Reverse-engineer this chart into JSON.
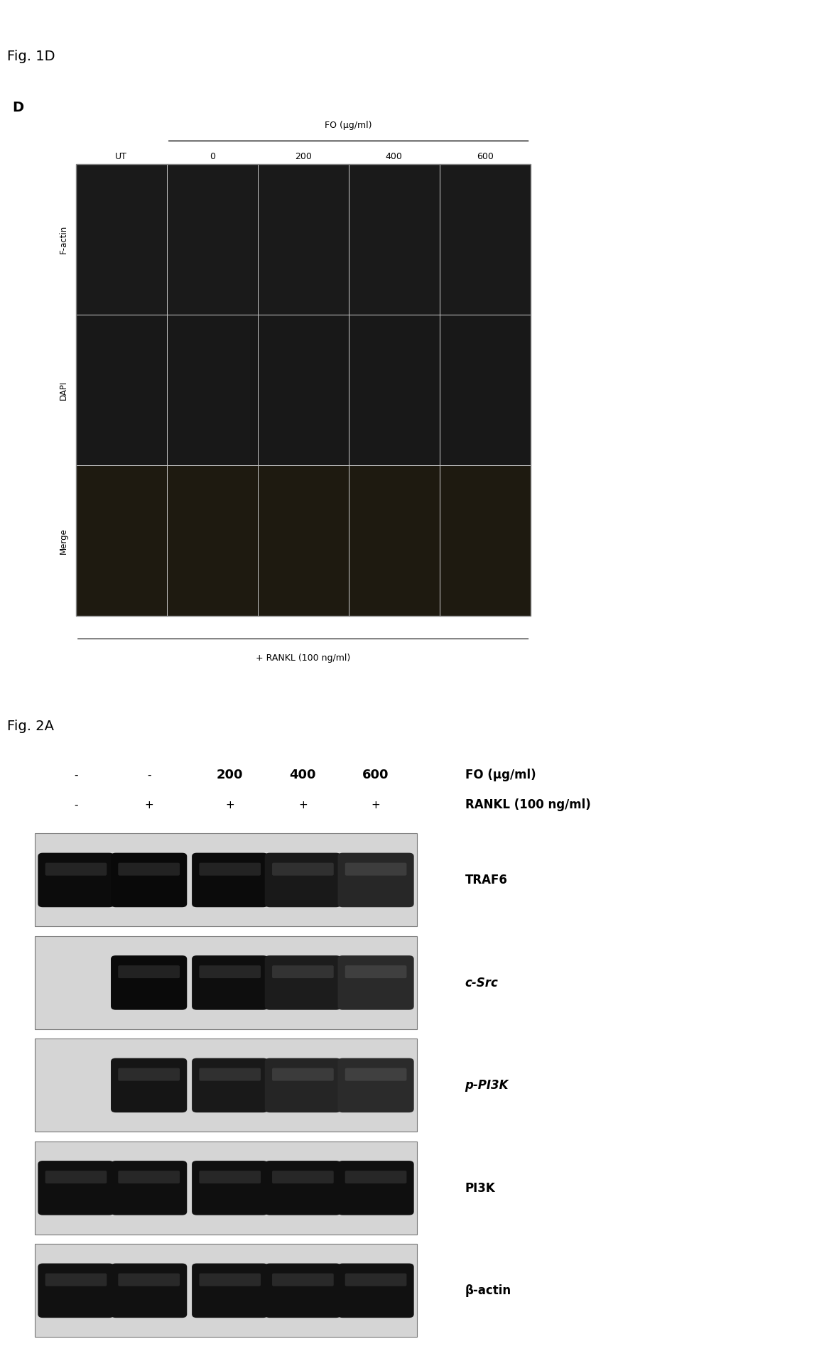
{
  "fig1d_label": "Fig. 1D",
  "fig2a_label": "Fig. 2A",
  "panel_d_label": "D",
  "fo_label": "FO (μg/ml)",
  "fo_concentrations": [
    "UT",
    "0",
    "200",
    "400",
    "600"
  ],
  "rankl_label": "+ RANKL (100 ng/ml)",
  "row_labels": [
    "F-actin",
    "DAPI",
    "Merge"
  ],
  "panel2a_fo_vals": [
    "-",
    "-",
    "200",
    "400",
    "600"
  ],
  "panel2a_rankl_vals": [
    "-",
    "+",
    "+",
    "+",
    "+"
  ],
  "fo_right_label": "FO (μg/ml)",
  "rankl_right_label": "RANKL (100 ng/ml)",
  "wb_labels": [
    "TRAF6",
    "c-Src",
    "p-PI3K",
    "PI3K",
    "β-actin"
  ],
  "band_intensity": {
    "TRAF6": [
      0.82,
      0.9,
      0.85,
      0.52,
      0.18
    ],
    "c-Src": [
      0.02,
      0.88,
      0.78,
      0.45,
      0.1
    ],
    "p-PI3K": [
      0.02,
      0.62,
      0.52,
      0.22,
      0.08
    ],
    "PI3K": [
      0.75,
      0.75,
      0.75,
      0.75,
      0.75
    ],
    "β-actin": [
      0.72,
      0.72,
      0.72,
      0.72,
      0.72
    ]
  },
  "page_bg": "#ffffff",
  "cell_dark": "#1c1c1c",
  "cell_light_gray": "#aaaaaa",
  "wb_bg": "#d8d8d8",
  "wb_border": "#666666"
}
